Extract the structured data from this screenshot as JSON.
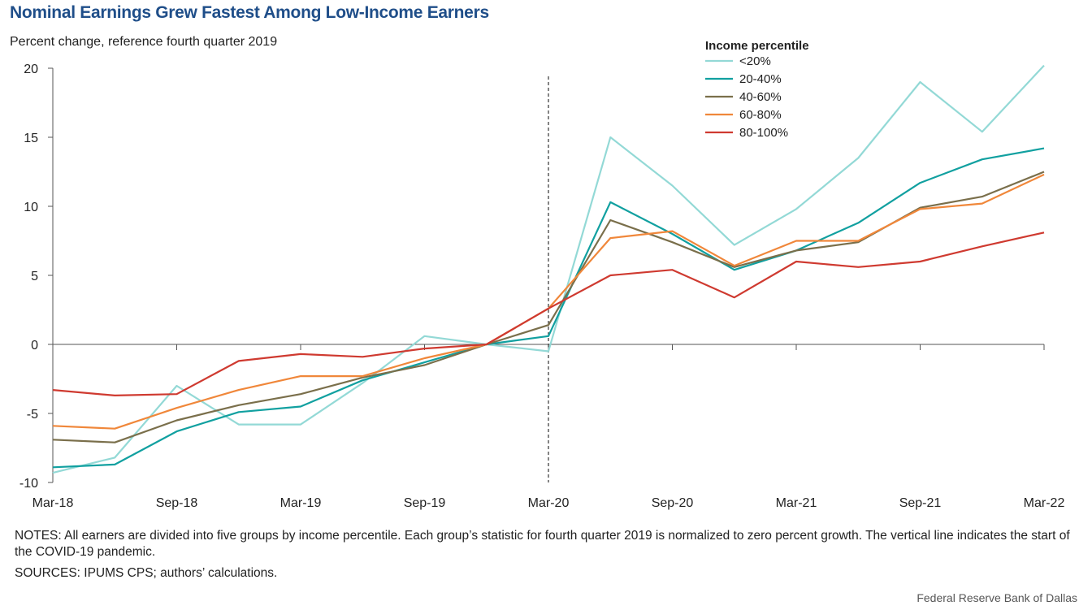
{
  "header": {
    "title": "Nominal Earnings Grew Fastest Among Low-Income Earners",
    "subtitle": "Percent change, reference fourth quarter 2019"
  },
  "notes": "NOTES: All earners are divided into five groups by income percentile. Each group’s statistic for fourth quarter 2019 is normalized to zero percent growth. The vertical line indicates the start of the COVID-19 pandemic.",
  "sources": "SOURCES: IPUMS CPS; authors’ calculations.",
  "footer": "Federal Reserve Bank of Dallas",
  "chart_data": {
    "type": "line",
    "title": "Nominal Earnings Grew Fastest Among Low-Income Earners",
    "ylabel": "Percent change, reference fourth quarter 2019",
    "xlabel": "",
    "ylim": [
      -10,
      20
    ],
    "yticks": [
      -10,
      -5,
      0,
      5,
      10,
      15,
      20
    ],
    "ytick_labels": [
      "-10",
      "-5",
      "0",
      "5",
      "10",
      "15",
      "20"
    ],
    "x": [
      "Mar-18",
      "Jun-18",
      "Sep-18",
      "Dec-18",
      "Mar-19",
      "Jun-19",
      "Sep-19",
      "Dec-19",
      "Mar-20",
      "Jun-20",
      "Sep-20",
      "Dec-20",
      "Mar-21",
      "Jun-21",
      "Sep-21",
      "Dec-21",
      "Mar-22"
    ],
    "xtick_labels": [
      "Mar-18",
      "Sep-18",
      "Mar-19",
      "Sep-19",
      "Mar-20",
      "Sep-20",
      "Mar-21",
      "Sep-21",
      "Mar-22"
    ],
    "xtick_indices": [
      0,
      2,
      4,
      6,
      8,
      10,
      12,
      14,
      16
    ],
    "vertical_line_at": "Mar-20",
    "legend_title": "Income percentile",
    "legend_position": "top-right",
    "series": [
      {
        "name": "<20%",
        "color": "#93d9d6",
        "values": [
          -9.3,
          -8.2,
          -3.0,
          -5.8,
          -5.8,
          -2.8,
          0.6,
          0.0,
          -0.5,
          15.0,
          11.5,
          7.2,
          9.8,
          13.5,
          19.0,
          15.4,
          20.2
        ]
      },
      {
        "name": "20-40%",
        "color": "#11a0a0",
        "values": [
          -8.9,
          -8.7,
          -6.3,
          -4.9,
          -4.5,
          -2.6,
          -1.3,
          0.0,
          0.6,
          10.3,
          8.0,
          5.4,
          6.8,
          8.8,
          11.7,
          13.4,
          14.2
        ]
      },
      {
        "name": "40-60%",
        "color": "#7a6f4b",
        "values": [
          -6.9,
          -7.1,
          -5.5,
          -4.4,
          -3.6,
          -2.4,
          -1.5,
          0.0,
          1.4,
          9.0,
          7.4,
          5.6,
          6.8,
          7.4,
          9.9,
          10.7,
          12.5
        ]
      },
      {
        "name": "60-80%",
        "color": "#f0873a",
        "values": [
          -5.9,
          -6.1,
          -4.6,
          -3.3,
          -2.3,
          -2.3,
          -1.0,
          0.0,
          2.6,
          7.7,
          8.2,
          5.7,
          7.5,
          7.5,
          9.8,
          10.2,
          12.3
        ]
      },
      {
        "name": "80-100%",
        "color": "#cf3a30",
        "values": [
          -3.3,
          -3.7,
          -3.6,
          -1.2,
          -0.7,
          -0.9,
          -0.3,
          0.0,
          2.6,
          5.0,
          5.4,
          3.4,
          6.0,
          5.6,
          6.0,
          7.1,
          8.1
        ]
      }
    ]
  }
}
